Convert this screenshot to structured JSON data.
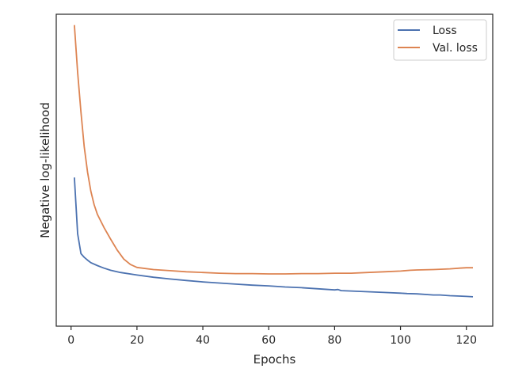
{
  "chart_data": {
    "type": "line",
    "title": "",
    "xlabel": "Epochs",
    "ylabel": "Negative log-likelihood",
    "xlim": [
      -4.5,
      128
    ],
    "xticks": [
      0,
      20,
      40,
      60,
      80,
      100,
      120
    ],
    "yticks": [],
    "grid": false,
    "legend_position": "top-right",
    "series": [
      {
        "name": "Loss",
        "color": "#4c72b0",
        "points": [
          [
            1,
            5.1
          ],
          [
            2,
            3.55
          ],
          [
            3,
            3.0
          ],
          [
            4,
            2.9
          ],
          [
            5,
            2.82
          ],
          [
            6,
            2.75
          ],
          [
            8,
            2.67
          ],
          [
            10,
            2.6
          ],
          [
            12,
            2.54
          ],
          [
            15,
            2.48
          ],
          [
            20,
            2.41
          ],
          [
            25,
            2.35
          ],
          [
            30,
            2.3
          ],
          [
            35,
            2.26
          ],
          [
            40,
            2.22
          ],
          [
            45,
            2.19
          ],
          [
            50,
            2.16
          ],
          [
            55,
            2.13
          ],
          [
            60,
            2.11
          ],
          [
            65,
            2.08
          ],
          [
            70,
            2.06
          ],
          [
            75,
            2.03
          ],
          [
            80,
            2.0
          ],
          [
            81,
            2.01
          ],
          [
            82,
            1.98
          ],
          [
            85,
            1.97
          ],
          [
            90,
            1.95
          ],
          [
            95,
            1.93
          ],
          [
            100,
            1.91
          ],
          [
            102,
            1.9
          ],
          [
            105,
            1.89
          ],
          [
            110,
            1.86
          ],
          [
            112,
            1.86
          ],
          [
            115,
            1.84
          ],
          [
            118,
            1.83
          ],
          [
            120,
            1.82
          ],
          [
            122,
            1.81
          ]
        ]
      },
      {
        "name": "Val. loss",
        "color": "#dd8452",
        "points": [
          [
            1,
            9.3
          ],
          [
            2,
            8.0
          ],
          [
            3,
            6.9
          ],
          [
            4,
            5.95
          ],
          [
            5,
            5.25
          ],
          [
            6,
            4.72
          ],
          [
            7,
            4.35
          ],
          [
            8,
            4.08
          ],
          [
            10,
            3.72
          ],
          [
            12,
            3.4
          ],
          [
            14,
            3.1
          ],
          [
            16,
            2.85
          ],
          [
            18,
            2.7
          ],
          [
            20,
            2.62
          ],
          [
            25,
            2.56
          ],
          [
            30,
            2.53
          ],
          [
            35,
            2.5
          ],
          [
            40,
            2.48
          ],
          [
            45,
            2.46
          ],
          [
            50,
            2.45
          ],
          [
            55,
            2.45
          ],
          [
            60,
            2.44
          ],
          [
            65,
            2.44
          ],
          [
            70,
            2.45
          ],
          [
            75,
            2.45
          ],
          [
            80,
            2.46
          ],
          [
            85,
            2.46
          ],
          [
            90,
            2.48
          ],
          [
            95,
            2.5
          ],
          [
            100,
            2.52
          ],
          [
            103,
            2.54
          ],
          [
            105,
            2.55
          ],
          [
            110,
            2.56
          ],
          [
            115,
            2.58
          ],
          [
            118,
            2.6
          ],
          [
            120,
            2.61
          ],
          [
            122,
            2.61
          ]
        ]
      }
    ]
  }
}
